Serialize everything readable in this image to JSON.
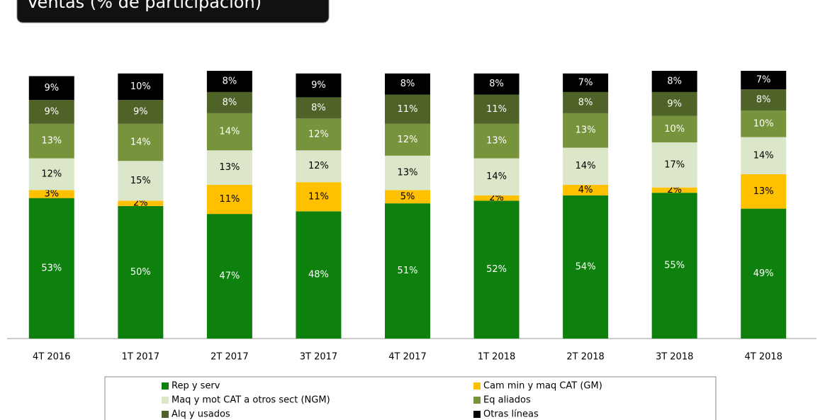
{
  "chart_data": {
    "type": "stacked_bar",
    "title": "Ventas (% de participación)",
    "categories": [
      "4T 2016",
      "1T 2017",
      "2T 2017",
      "3T 2017",
      "4T 2017",
      "1T 2018",
      "2T 2018",
      "3T 2018",
      "4T 2018"
    ],
    "series": [
      {
        "name": "Rep y serv",
        "color": "#0e800e",
        "values": [
          53,
          50,
          47,
          48,
          51,
          52,
          54,
          55,
          49
        ],
        "value_labels": [
          "53%",
          "50%",
          "47%",
          "48%",
          "51%",
          "52%",
          "54%",
          "55%",
          "49%"
        ]
      },
      {
        "name": "Cam min y maq CAT (GM)",
        "color": "#ffc000",
        "values": [
          3,
          2,
          11,
          11,
          5,
          2,
          4,
          2,
          13
        ],
        "value_labels": [
          "3%",
          "2%",
          "11%",
          "11%",
          "5%",
          "2%",
          "4%",
          "2%",
          "13%"
        ]
      },
      {
        "name": "Maq y mot CAT a otros sect (NGM)",
        "color": "#dce6c8",
        "values": [
          12,
          15,
          13,
          12,
          13,
          14,
          14,
          17,
          14
        ],
        "value_labels": [
          "12%",
          "15%",
          "13%",
          "12%",
          "13%",
          "14%",
          "14%",
          "17%",
          "14%"
        ]
      },
      {
        "name": "Eq aliados",
        "color": "#77933c",
        "values": [
          13,
          14,
          14,
          12,
          12,
          13,
          13,
          10,
          10
        ],
        "value_labels": [
          "13%",
          "14%",
          "14%",
          "12%",
          "12%",
          "13%",
          "13%",
          "10%",
          "10%"
        ]
      },
      {
        "name": "Alq y usados",
        "color": "#4f6228",
        "values": [
          9,
          9,
          8,
          8,
          11,
          11,
          8,
          9,
          8
        ],
        "value_labels": [
          "9%",
          "9%",
          "8%",
          "8%",
          "11%",
          "11%",
          "8%",
          "9%",
          "8%"
        ]
      },
      {
        "name": "Otras líneas",
        "color": "#000000",
        "values": [
          9,
          10,
          8,
          9,
          8,
          8,
          7,
          8,
          7
        ],
        "value_labels": [
          "9%",
          "10%",
          "8%",
          "9%",
          "8%",
          "8%",
          "7%",
          "8%",
          "7%"
        ]
      }
    ]
  }
}
